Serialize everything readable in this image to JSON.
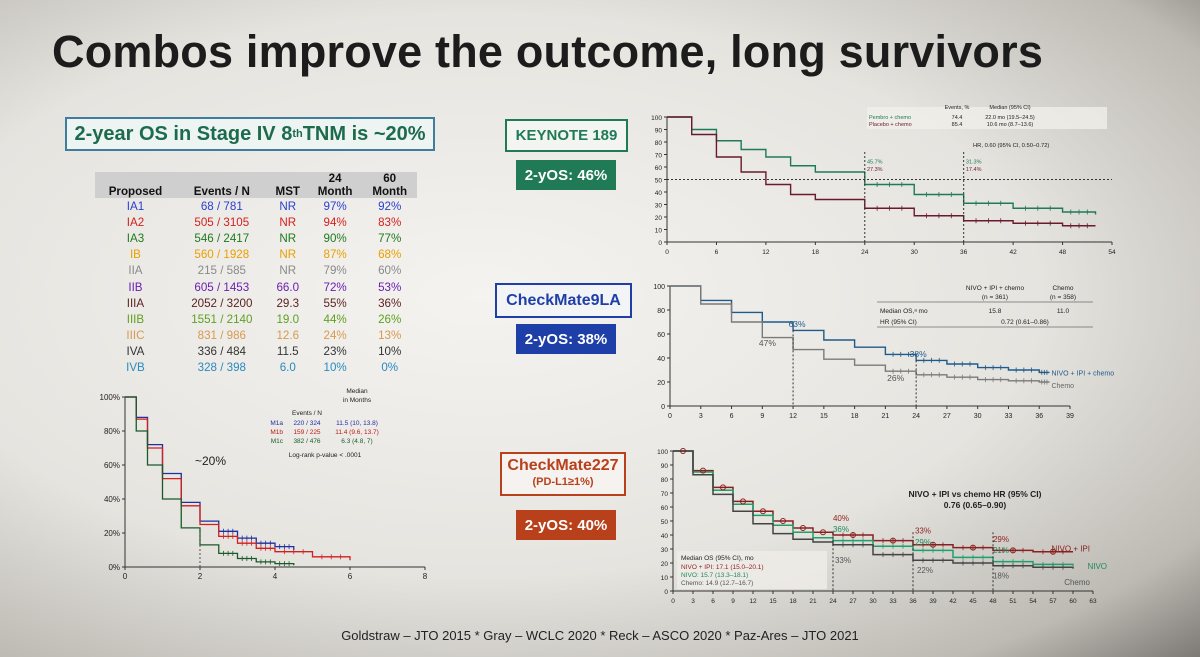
{
  "slide_title": "Combos improve the outcome, long survivors",
  "os_box": {
    "text": "2-year OS in Stage IV 8",
    "sup": "th",
    "text2": " TNM is ~20%"
  },
  "tnm_table": {
    "headers": [
      "Proposed",
      "Events / N",
      "MST",
      "24\nMonth",
      "60\nMonth"
    ],
    "rows": [
      {
        "stage": "IA1",
        "events": "68 / 781",
        "mst": "NR",
        "m24": "97%",
        "m60": "92%",
        "color": "#2b3fcf"
      },
      {
        "stage": "IA2",
        "events": "505 / 3105",
        "mst": "NR",
        "m24": "94%",
        "m60": "83%",
        "color": "#d42020"
      },
      {
        "stage": "IA3",
        "events": "546 / 2417",
        "mst": "NR",
        "m24": "90%",
        "m60": "77%",
        "color": "#1f7a1f"
      },
      {
        "stage": "IB",
        "events": "560 / 1928",
        "mst": "NR",
        "m24": "87%",
        "m60": "68%",
        "color": "#e8a000"
      },
      {
        "stage": "IIA",
        "events": "215 / 585",
        "mst": "NR",
        "m24": "79%",
        "m60": "60%",
        "color": "#8a8a8a"
      },
      {
        "stage": "IIB",
        "events": "605 / 1453",
        "mst": "66.0",
        "m24": "72%",
        "m60": "53%",
        "color": "#6a1fb0"
      },
      {
        "stage": "IIIA",
        "events": "2052 / 3200",
        "mst": "29.3",
        "m24": "55%",
        "m60": "36%",
        "color": "#5a1f1f"
      },
      {
        "stage": "IIIB",
        "events": "1551 / 2140",
        "mst": "19.0",
        "m24": "44%",
        "m60": "26%",
        "color": "#5fa020"
      },
      {
        "stage": "IIIC",
        "events": "831 / 986",
        "mst": "12.6",
        "m24": "24%",
        "m60": "13%",
        "color": "#d79a50"
      },
      {
        "stage": "IVA",
        "events": "336 / 484",
        "mst": "11.5",
        "m24": "23%",
        "m60": "10%",
        "color": "#333333"
      },
      {
        "stage": "IVB",
        "events": "328 / 398",
        "mst": "6.0",
        "m24": "10%",
        "m60": "0%",
        "color": "#2a8ac0"
      }
    ]
  },
  "trials": {
    "keynote": {
      "name": "KEYNOTE 189",
      "yos": "2-yOS: 46%",
      "border": "#1f7a55",
      "text_color": "#1f7a55",
      "bg": "#1f7a55"
    },
    "checkmate9la": {
      "name": "CheckMate9LA",
      "yos": "2-yOS: 38%",
      "border": "#1f3fa8",
      "text_color": "#1f3fa8",
      "bg": "#1f3fa8"
    },
    "checkmate227": {
      "name": "CheckMate227",
      "sub": "(PD-L1≥1%)",
      "yos": "2-yOS: 40%",
      "border": "#b8401a",
      "text_color": "#b8401a",
      "bg": "#b8401a"
    }
  },
  "footer": "Goldstraw – JTO 2015 * Gray – WCLC 2020 * Reck – ASCO 2020 * Paz-Ares – JTO  2021",
  "chart_data": [
    {
      "id": "stage-iv-km",
      "type": "line",
      "title": "",
      "xlabel": "",
      "ylabel": "",
      "xlim": [
        0,
        8
      ],
      "ylim": [
        0,
        100
      ],
      "x_ticks": [
        "0",
        "2",
        "4",
        "6",
        "8"
      ],
      "y_ticks": [
        "0%",
        "20%",
        "40%",
        "60%",
        "80%",
        "100%"
      ],
      "annotation": "~20%",
      "legend_header": [
        "Events / N",
        "Median\nin Months"
      ],
      "legend_rows": [
        {
          "label": "M1a",
          "events": "220 / 324",
          "median": "11.5 (10, 13.8)",
          "color": "#1f2fa0"
        },
        {
          "label": "M1b",
          "events": "159 / 225",
          "median": "11.4 (9.6, 13.7)",
          "color": "#c01818"
        },
        {
          "label": "M1c",
          "events": "382 / 476",
          "median": "6.3 (4.8, 7)",
          "color": "#1a5a2a"
        }
      ],
      "footnote": "Log-rank p-value < .0001",
      "series": [
        {
          "name": "M1a",
          "color": "#1f2fa0",
          "x": [
            0,
            0.3,
            0.6,
            1,
            1.5,
            2,
            2.5,
            3,
            3.5,
            4,
            4.5
          ],
          "y": [
            100,
            88,
            72,
            55,
            38,
            27,
            21,
            17,
            14,
            12,
            10
          ]
        },
        {
          "name": "M1b",
          "color": "#d02020",
          "x": [
            0,
            0.3,
            0.6,
            1,
            1.5,
            2,
            2.5,
            3,
            3.5,
            4,
            5,
            6
          ],
          "y": [
            100,
            87,
            70,
            52,
            36,
            25,
            18,
            14,
            11,
            9,
            6,
            4
          ]
        },
        {
          "name": "M1c",
          "color": "#1a5a2a",
          "x": [
            0,
            0.3,
            0.6,
            1,
            1.5,
            2,
            2.5,
            3,
            3.5,
            4,
            4.5
          ],
          "y": [
            100,
            80,
            60,
            40,
            23,
            13,
            8,
            5,
            3,
            2,
            1
          ]
        }
      ]
    },
    {
      "id": "keynote189-km",
      "type": "line",
      "xlim": [
        0,
        54
      ],
      "ylim": [
        0,
        100
      ],
      "x_ticks": [
        "0",
        "6",
        "12",
        "18",
        "24",
        "30",
        "36",
        "42",
        "48",
        "54"
      ],
      "y_ticks": [
        "0",
        "10",
        "20",
        "30",
        "40",
        "50",
        "60",
        "70",
        "80",
        "90",
        "100"
      ],
      "table_headers": [
        "Events,\n%",
        "Median\n(95% CI)"
      ],
      "table_rows": [
        {
          "label": "Pembro + chemo",
          "events": "74.4",
          "median": "22.0 mo (19.5–24.5)"
        },
        {
          "label": "Placebo + chemo",
          "events": "85.4",
          "median": "10.6 mo (8.7–13.6)"
        }
      ],
      "hr_text": "HR, 0.60 (95% CI, 0.50–0.72)",
      "annotations": [
        {
          "text": "45.7%",
          "at_x": 24
        },
        {
          "text": "27.3%",
          "at_x": 24
        },
        {
          "text": "31.3%",
          "at_x": 36
        },
        {
          "text": "17.4%",
          "at_x": 36
        }
      ],
      "series": [
        {
          "name": "Pembro + chemo",
          "color": "#1f7a5a",
          "x": [
            0,
            3,
            6,
            9,
            12,
            15,
            18,
            24,
            30,
            36,
            42,
            48,
            52
          ],
          "y": [
            100,
            90,
            81,
            74,
            68,
            61,
            56,
            46,
            38,
            31,
            27,
            24,
            22
          ]
        },
        {
          "name": "Placebo + chemo",
          "color": "#6a1a2a",
          "x": [
            0,
            3,
            6,
            9,
            12,
            15,
            18,
            24,
            30,
            36,
            42,
            48,
            52
          ],
          "y": [
            100,
            86,
            68,
            56,
            46,
            38,
            34,
            27,
            21,
            17,
            15,
            13,
            13
          ]
        }
      ]
    },
    {
      "id": "checkmate9la-km",
      "type": "line",
      "xlim": [
        0,
        39
      ],
      "ylim": [
        0,
        100
      ],
      "x_ticks": [
        "0",
        "3",
        "6",
        "9",
        "12",
        "15",
        "18",
        "21",
        "24",
        "27",
        "30",
        "33",
        "36",
        "39"
      ],
      "y_ticks": [
        "0",
        "20",
        "40",
        "60",
        "80",
        "100"
      ],
      "table_headers": [
        "NIVO + IPI + chemo\n(n = 361)",
        "Chemo\n(n = 358)"
      ],
      "table_rows": [
        {
          "label": "Median OS,ᵃ mo",
          "a": "15.8",
          "b": "11.0"
        },
        {
          "label": "HR (95% CI)",
          "a": "0.72 (0.61–0.86)",
          "b": ""
        }
      ],
      "annotations": [
        "63%",
        "47%",
        "38%",
        "26%"
      ],
      "series": [
        {
          "name": "NIVO + IPI + chemo",
          "color": "#1f5a8a",
          "x": [
            0,
            3,
            6,
            9,
            12,
            15,
            18,
            21,
            24,
            27,
            30,
            33,
            36,
            37
          ],
          "y": [
            100,
            88,
            78,
            70,
            63,
            55,
            49,
            43,
            38,
            35,
            32,
            30,
            28,
            28
          ]
        },
        {
          "name": "Chemo",
          "color": "#7a7a7a",
          "x": [
            0,
            3,
            6,
            9,
            12,
            15,
            18,
            21,
            24,
            27,
            30,
            33,
            36,
            37
          ],
          "y": [
            100,
            85,
            70,
            57,
            47,
            39,
            34,
            29,
            26,
            24,
            22,
            21,
            20,
            20
          ]
        }
      ]
    },
    {
      "id": "checkmate227-km",
      "type": "line",
      "xlim": [
        0,
        63
      ],
      "ylim": [
        0,
        100
      ],
      "x_ticks": [
        "0",
        "3",
        "6",
        "9",
        "12",
        "15",
        "18",
        "21",
        "24",
        "27",
        "30",
        "33",
        "36",
        "39",
        "42",
        "45",
        "48",
        "51",
        "54",
        "57",
        "60",
        "63"
      ],
      "y_ticks": [
        "0",
        "10",
        "20",
        "30",
        "40",
        "50",
        "60",
        "70",
        "80",
        "90",
        "100"
      ],
      "hr_title": "NIVO + IPI vs chemo HR (95% CI)",
      "hr_value": "0.76 (0.65–0.90)",
      "median_title": "Median OS (95% CI), mo",
      "median_rows": [
        {
          "text": "NIVO + IPI: 17.1 (15.0–20.1)",
          "color": "#8a1f1f"
        },
        {
          "text": "NIVO: 15.7 (13.3–18.1)",
          "color": "#1f8a5a"
        },
        {
          "text": "Chemo: 14.9 (12.7–16.7)",
          "color": "#555555"
        }
      ],
      "annotations": [
        "40%",
        "36%",
        "33%",
        "33%",
        "29%",
        "22%",
        "29%",
        "21%",
        "18%"
      ],
      "series": [
        {
          "name": "NIVO + IPI",
          "color": "#8a1f1f",
          "x": [
            0,
            3,
            6,
            9,
            12,
            15,
            18,
            21,
            24,
            30,
            36,
            42,
            48,
            54,
            60
          ],
          "y": [
            100,
            86,
            74,
            64,
            57,
            50,
            45,
            42,
            40,
            36,
            33,
            31,
            29,
            28,
            28
          ]
        },
        {
          "name": "NIVO",
          "color": "#1fa06a",
          "x": [
            0,
            3,
            6,
            9,
            12,
            15,
            18,
            21,
            24,
            30,
            36,
            42,
            48,
            54,
            60
          ],
          "y": [
            100,
            85,
            72,
            62,
            54,
            47,
            42,
            38,
            36,
            32,
            29,
            24,
            21,
            19,
            18
          ]
        },
        {
          "name": "Chemo",
          "color": "#444444",
          "x": [
            0,
            3,
            6,
            9,
            12,
            15,
            18,
            21,
            24,
            30,
            36,
            42,
            48,
            54,
            60
          ],
          "y": [
            100,
            83,
            69,
            57,
            48,
            41,
            37,
            35,
            33,
            26,
            22,
            20,
            18,
            17,
            16
          ]
        }
      ]
    }
  ]
}
